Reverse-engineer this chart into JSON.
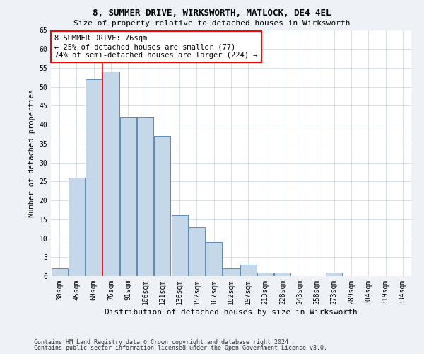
{
  "title1": "8, SUMMER DRIVE, WIRKSWORTH, MATLOCK, DE4 4EL",
  "title2": "Size of property relative to detached houses in Wirksworth",
  "xlabel": "Distribution of detached houses by size in Wirksworth",
  "ylabel": "Number of detached properties",
  "categories": [
    "30sqm",
    "45sqm",
    "60sqm",
    "76sqm",
    "91sqm",
    "106sqm",
    "121sqm",
    "136sqm",
    "152sqm",
    "167sqm",
    "182sqm",
    "197sqm",
    "213sqm",
    "228sqm",
    "243sqm",
    "258sqm",
    "273sqm",
    "289sqm",
    "304sqm",
    "319sqm",
    "334sqm"
  ],
  "values": [
    2,
    26,
    52,
    54,
    42,
    42,
    37,
    16,
    13,
    9,
    2,
    3,
    1,
    1,
    0,
    0,
    1,
    0,
    0,
    0,
    0
  ],
  "bar_color": "#c5d8ea",
  "bar_edge_color": "#5b8db8",
  "highlight_line_index": 3,
  "annotation_text": "8 SUMMER DRIVE: 76sqm\n← 25% of detached houses are smaller (77)\n74% of semi-detached houses are larger (224) →",
  "annotation_box_color": "white",
  "annotation_box_edge_color": "red",
  "highlight_line_color": "red",
  "ylim": [
    0,
    65
  ],
  "yticks": [
    0,
    5,
    10,
    15,
    20,
    25,
    30,
    35,
    40,
    45,
    50,
    55,
    60,
    65
  ],
  "footer1": "Contains HM Land Registry data © Crown copyright and database right 2024.",
  "footer2": "Contains public sector information licensed under the Open Government Licence v3.0.",
  "bg_color": "#eef2f7",
  "plot_bg_color": "white",
  "grid_color": "#c8d4e0",
  "title1_fontsize": 9,
  "title2_fontsize": 8,
  "xlabel_fontsize": 8,
  "ylabel_fontsize": 7.5,
  "tick_fontsize": 7,
  "footer_fontsize": 6,
  "ann_fontsize": 7.5
}
